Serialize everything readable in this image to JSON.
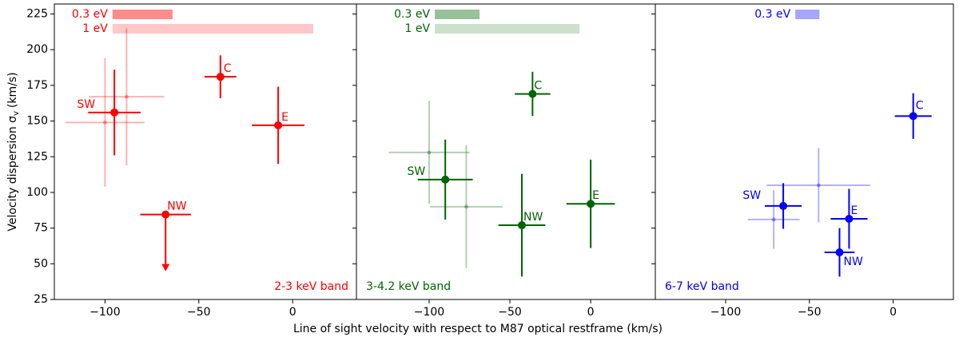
{
  "xlabel": "Line of sight velocity with respect to M87 optical restframe (km/s)",
  "ylabel": {
    "text": "Velocity dispersion σ",
    "sub": "v",
    "unit": "(km/s)"
  },
  "chart_data": [
    {
      "type": "scatter",
      "band_label": "2-3 keV band",
      "label_loc": "lower right",
      "xlim": [
        -127,
        34
      ],
      "ylim": [
        25,
        232
      ],
      "xticks": [
        {
          "value": -100,
          "label": "−100"
        },
        {
          "value": -50,
          "label": "−50"
        },
        0
      ],
      "yticks": [
        25,
        50,
        75,
        100,
        125,
        150,
        175,
        200,
        225
      ],
      "series": [
        {
          "color": "#ff0000",
          "alpha": 1,
          "labels": [
            "C",
            "E",
            "SW",
            "NW"
          ],
          "x": [
            -38.5,
            -7.7,
            -95,
            -67.7
          ],
          "values": [
            181,
            147,
            156,
            84.5
          ],
          "xerr": [
            8.5,
            14,
            14,
            13.5
          ],
          "yerr": [
            15,
            27,
            30,
            null
          ],
          "upper_limit": [
            false,
            false,
            false,
            true
          ]
        },
        {
          "color": "#ff0000",
          "alpha": 0.3,
          "x": [
            -100,
            -88.5
          ],
          "values": [
            149,
            167
          ],
          "xerr": [
            21,
            20
          ],
          "yerr": [
            45,
            48
          ]
        }
      ],
      "scale_bars": [
        {
          "name": "0.3 eV",
          "x": -96,
          "width": 32,
          "alpha": 0.45
        },
        {
          "name": "1 eV",
          "x": -96,
          "width": 107,
          "alpha": 0.22
        }
      ]
    },
    {
      "type": "scatter",
      "band_label": "3-4.2 keV band",
      "label_loc": "lower left",
      "xlim": [
        -145,
        40
      ],
      "ylim": [
        25,
        232
      ],
      "xticks": [
        {
          "value": -100,
          "label": "−100"
        },
        {
          "value": -50,
          "label": "−50"
        },
        0
      ],
      "yticks": [
        25,
        50,
        75,
        100,
        125,
        150,
        175,
        200,
        225
      ],
      "series": [
        {
          "color": "#006400",
          "alpha": 1,
          "labels": [
            "C",
            "E",
            "SW",
            "NW"
          ],
          "x": [
            -36,
            0,
            -90,
            -42.6
          ],
          "values": [
            169,
            92,
            109,
            77
          ],
          "xerr": [
            11,
            15,
            17,
            14.5
          ],
          "yerr": [
            15.5,
            31,
            28,
            36
          ],
          "upper_limit": [
            false,
            false,
            false,
            false
          ]
        },
        {
          "color": "#006400",
          "alpha": 0.3,
          "x": [
            -100,
            -77
          ],
          "values": [
            128,
            90
          ],
          "xerr": [
            25,
            22.5
          ],
          "yerr": [
            36,
            43
          ]
        }
      ],
      "scale_bars": [
        {
          "name": "0.3 eV",
          "x": -96.5,
          "width": 27.7,
          "alpha": 0.4
        },
        {
          "name": "1 eV",
          "x": -96.5,
          "width": 89.6,
          "alpha": 0.2
        }
      ]
    },
    {
      "type": "scatter",
      "band_label": "6-7 keV band",
      "label_loc": "lower left",
      "xlim": [
        -142,
        36
      ],
      "ylim": [
        25,
        232
      ],
      "xticks": [
        {
          "value": -100,
          "label": "−100"
        },
        {
          "value": -50,
          "label": "−50"
        },
        0
      ],
      "yticks": [
        25,
        50,
        75,
        100,
        125,
        150,
        175,
        200,
        225
      ],
      "series": [
        {
          "color": "#0000ff",
          "alpha": 1,
          "labels": [
            "C",
            "SW",
            "E",
            "NW"
          ],
          "x": [
            12,
            -65.6,
            -26.3,
            -32
          ],
          "values": [
            153.5,
            90.5,
            81.5,
            58
          ],
          "xerr": [
            11,
            11,
            11,
            9
          ],
          "yerr": [
            16,
            16,
            21,
            17
          ],
          "upper_limit": [
            false,
            false,
            false,
            false
          ]
        },
        {
          "color": "#0000ff",
          "alpha": 0.3,
          "x": [
            -44.5,
            -71.3
          ],
          "values": [
            105,
            81
          ],
          "xerr": [
            31,
            15.5
          ],
          "yerr": [
            26,
            20.5
          ]
        }
      ],
      "scale_bars": [
        {
          "name": "0.3 eV",
          "x": -58.4,
          "width": 14.4,
          "alpha": 0.35
        }
      ]
    }
  ]
}
